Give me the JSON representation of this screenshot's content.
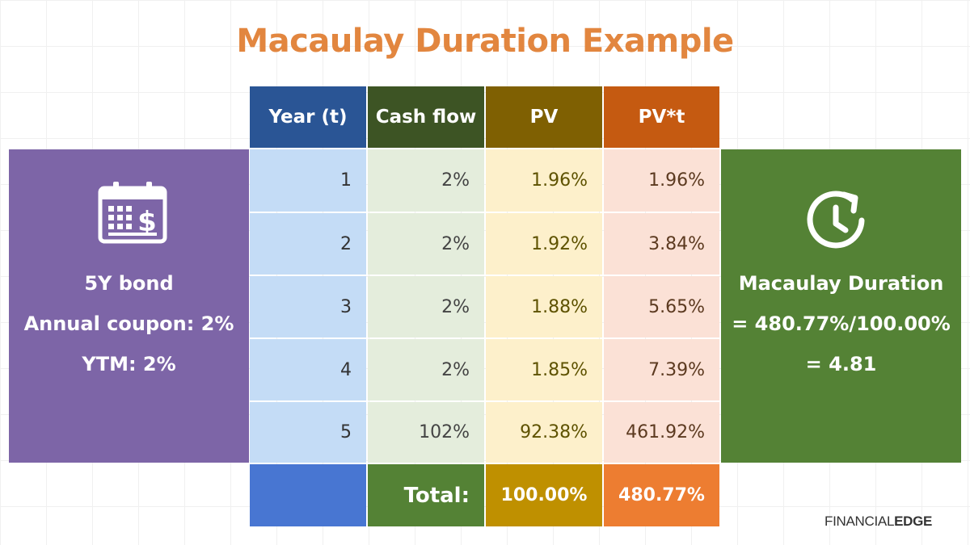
{
  "title": "Macaulay Duration Example",
  "headers": [
    "Year (t)",
    "Cash flow",
    "PV",
    "PV*t"
  ],
  "header_colors": [
    "#2a5595",
    "#3d5424",
    "#7f6002",
    "#c55a11"
  ],
  "rows": [
    {
      "year": "1",
      "cash_flow": "2%",
      "pv": "1.96%",
      "pvt": "1.96%"
    },
    {
      "year": "2",
      "cash_flow": "2%",
      "pv": "1.92%",
      "pvt": "3.84%"
    },
    {
      "year": "3",
      "cash_flow": "2%",
      "pv": "1.88%",
      "pvt": "5.65%"
    },
    {
      "year": "4",
      "cash_flow": "2%",
      "pv": "1.85%",
      "pvt": "7.39%"
    },
    {
      "year": "5",
      "cash_flow": "102%",
      "pv": "92.38%",
      "pvt": "461.92%"
    }
  ],
  "total": {
    "label": "Total:",
    "pv": "100.00%",
    "pvt": "480.77%"
  },
  "left_panel": {
    "icon": "calendar-dollar-icon",
    "lines": [
      "5Y bond",
      "Annual coupon: 2%",
      "YTM: 2%"
    ]
  },
  "right_panel": {
    "icon": "clock-refresh-icon",
    "lines": [
      "Macaulay Duration",
      "= 480.77%/100.00%",
      "= 4.81"
    ]
  },
  "logo": {
    "part1": "FINANCIAL",
    "part2": "EDGE"
  }
}
